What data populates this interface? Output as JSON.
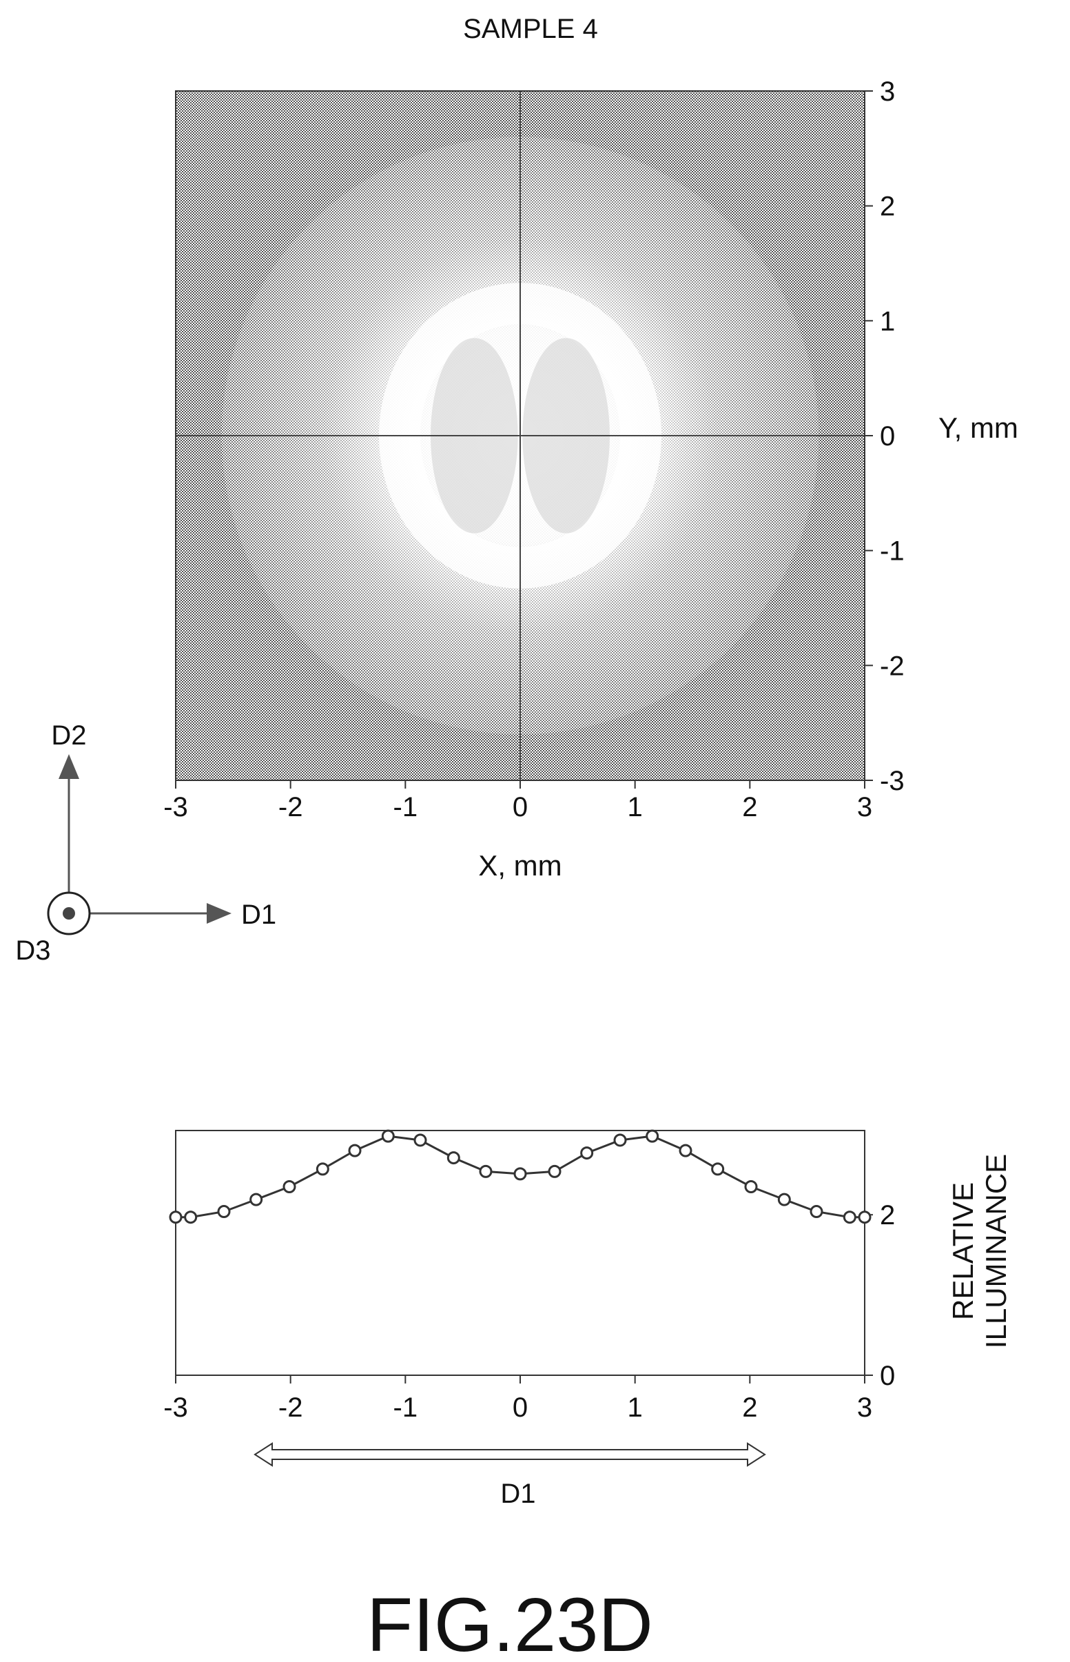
{
  "figure_label": "FIG.23D",
  "chart_data": [
    {
      "type": "heatmap",
      "title": "SAMPLE 4",
      "xlabel": "X, mm",
      "ylabel": "Y, mm",
      "xlim": [
        -3,
        3
      ],
      "ylim": [
        -3,
        3
      ],
      "x_ticks": [
        "-3",
        "-2",
        "-1",
        "0",
        "1",
        "2",
        "3"
      ],
      "y_ticks": [
        "3",
        "2",
        "1",
        "0",
        "-1",
        "-2",
        "-3"
      ],
      "crosshair": true,
      "colors": {
        "background": "#7a7a7a",
        "bright_center": "#ffffff",
        "frame": "#333333"
      },
      "description_values": {
        "ring_center": [
          0,
          0
        ],
        "ring_radius_x_mm": 1.05,
        "ring_radius_y_mm": 1.15,
        "inner_dim_lobes_x_mm": [
          -0.4,
          0.4
        ]
      }
    },
    {
      "type": "line",
      "xlabel": "",
      "ylabel": "RELATIVE ILLUMINANCE",
      "ylabel_lines": [
        "RELATIVE",
        "ILLUMINANCE"
      ],
      "xlim": [
        -3,
        3
      ],
      "ylim": [
        0,
        3.05
      ],
      "x_ticks": [
        "-3",
        "-2",
        "-1",
        "0",
        "1",
        "2",
        "3"
      ],
      "y_ticks": [
        {
          "v": 0,
          "t": "0"
        },
        {
          "v": 2,
          "t": "2"
        }
      ],
      "grid": false,
      "series": [
        {
          "marker": "circle",
          "points": [
            [
              -3.0,
              1.97
            ],
            [
              -2.87,
              1.97
            ],
            [
              -2.58,
              2.04
            ],
            [
              -2.3,
              2.19
            ],
            [
              -2.01,
              2.35
            ],
            [
              -1.72,
              2.57
            ],
            [
              -1.44,
              2.8
            ],
            [
              -1.15,
              2.98
            ],
            [
              -0.87,
              2.93
            ],
            [
              -0.58,
              2.71
            ],
            [
              -0.3,
              2.54
            ],
            [
              0.0,
              2.51
            ],
            [
              0.3,
              2.54
            ],
            [
              0.58,
              2.77
            ],
            [
              0.87,
              2.93
            ],
            [
              1.15,
              2.98
            ],
            [
              1.44,
              2.8
            ],
            [
              1.72,
              2.57
            ],
            [
              2.01,
              2.35
            ],
            [
              2.3,
              2.19
            ],
            [
              2.58,
              2.04
            ],
            [
              2.87,
              1.97
            ],
            [
              3.0,
              1.97
            ]
          ]
        }
      ],
      "direction_arrow_label": "D1"
    }
  ],
  "axes_legend": {
    "d1": "D1",
    "d2": "D2",
    "d3": "D3"
  }
}
